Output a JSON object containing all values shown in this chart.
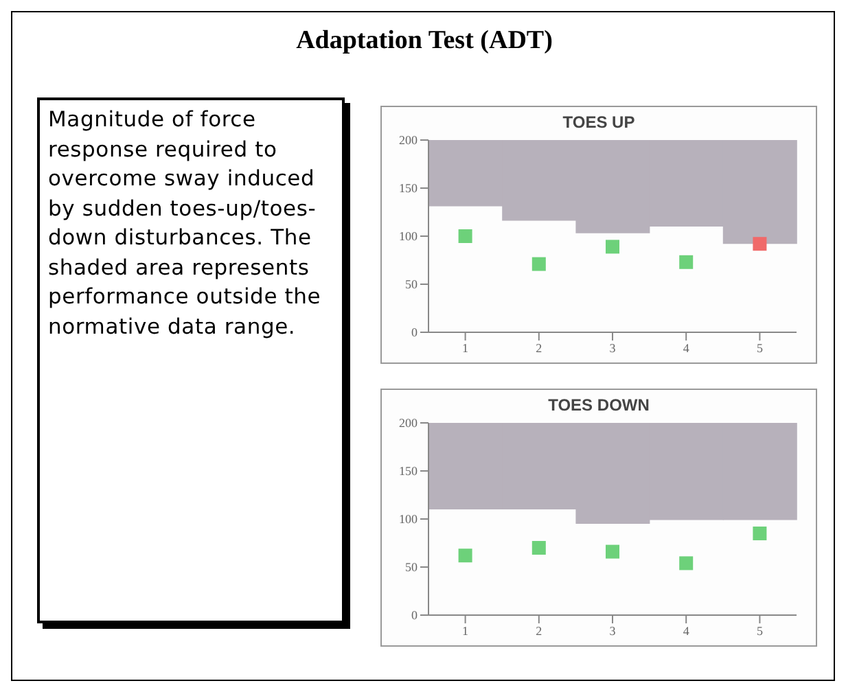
{
  "chart_data": [
    {
      "type": "other",
      "title": "Adaptation Test (ADT)",
      "annotations": [
        "Magnitude of force response required to overcome sway induced by sudden toes-up/toes-down disturbances. The shaded area represents performance outside the normative data range."
      ]
    },
    {
      "type": "scatter",
      "title": "TOES UP",
      "categories": [
        "1",
        "2",
        "3",
        "4",
        "5"
      ],
      "ylim": [
        0,
        200
      ],
      "yticks": [
        0,
        50,
        100,
        150,
        200
      ],
      "marker": "square",
      "series": [
        {
          "type": "bar",
          "color": "#b7b1bb",
          "base": [
            131,
            116,
            103,
            110,
            92
          ],
          "values": [
            69,
            84,
            97,
            90,
            108
          ]
        },
        {
          "type": "scatter",
          "x": [
            "1",
            "2",
            "3",
            "4",
            "5"
          ],
          "colors": [
            "#6dd17a",
            "#6dd17a",
            "#6dd17a",
            "#6dd17a",
            "#f06a6a"
          ],
          "values": [
            100,
            71,
            89,
            73,
            92
          ]
        }
      ]
    },
    {
      "type": "scatter",
      "title": "TOES DOWN",
      "categories": [
        "1",
        "2",
        "3",
        "4",
        "5"
      ],
      "ylim": [
        0,
        200
      ],
      "yticks": [
        0,
        50,
        100,
        150,
        200
      ],
      "marker": "square",
      "series": [
        {
          "type": "bar",
          "color": "#b7b1bb",
          "base": [
            110,
            110,
            95,
            99,
            99
          ],
          "values": [
            90,
            90,
            105,
            101,
            101
          ]
        },
        {
          "type": "scatter",
          "x": [
            "1",
            "2",
            "3",
            "4",
            "5"
          ],
          "colors": [
            "#6dd17a",
            "#6dd17a",
            "#6dd17a",
            "#6dd17a",
            "#6dd17a"
          ],
          "values": [
            62,
            70,
            66,
            54,
            85
          ]
        }
      ]
    }
  ]
}
